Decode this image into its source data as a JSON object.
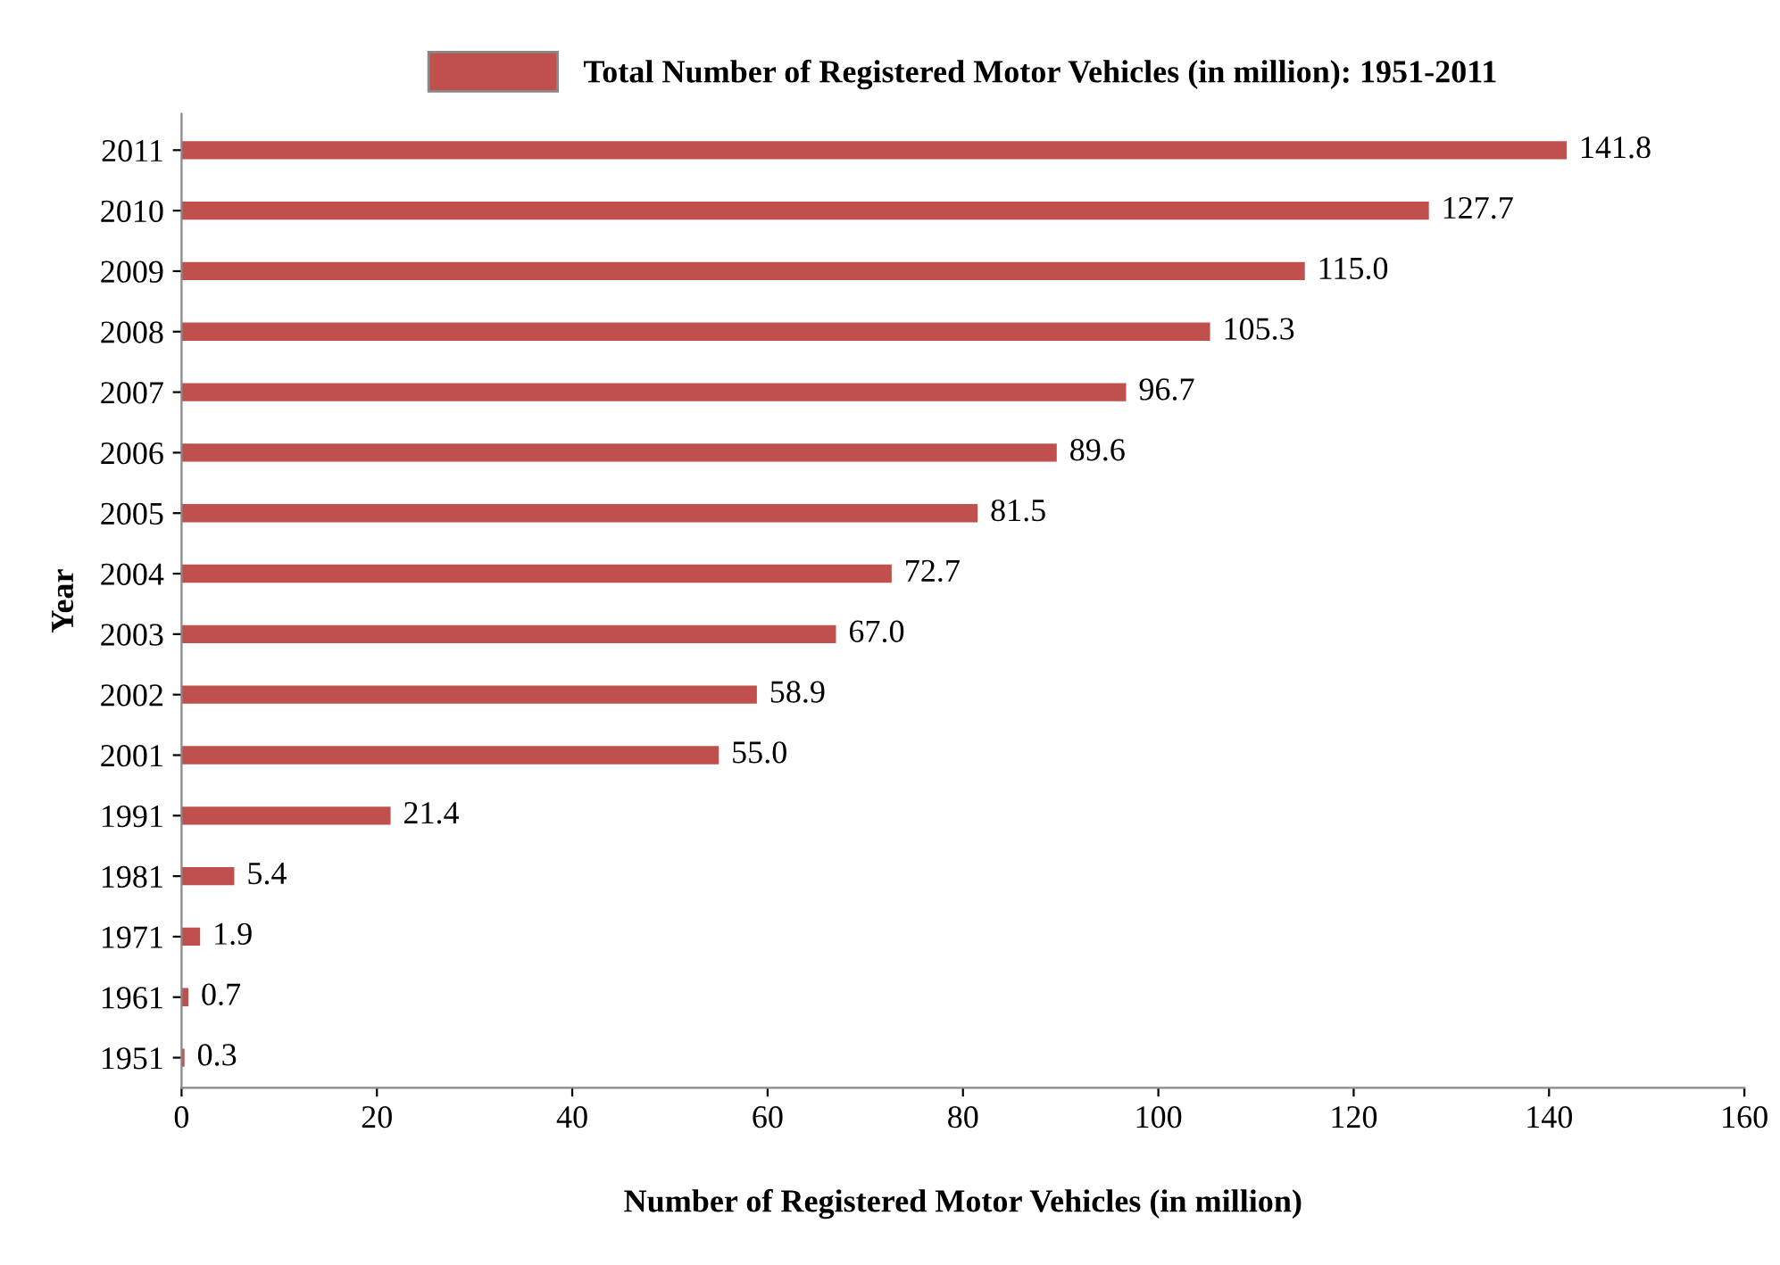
{
  "chart_data": {
    "type": "bar",
    "orientation": "horizontal",
    "xlabel": "Number of Registered Motor Vehicles (in million)",
    "ylabel": "Year",
    "categories": [
      "2011",
      "2010",
      "2009",
      "2008",
      "2007",
      "2006",
      "2005",
      "2004",
      "2003",
      "2002",
      "2001",
      "1991",
      "1981",
      "1971",
      "1961",
      "1951"
    ],
    "series": [
      {
        "name": "Total Number of Registered Motor Vehicles (in million): 1951-2011",
        "color": "#c0504d",
        "values": [
          141.8,
          127.7,
          115.0,
          105.3,
          96.7,
          89.6,
          81.5,
          72.7,
          67.0,
          58.9,
          55.0,
          21.4,
          5.4,
          1.9,
          0.7,
          0.3
        ],
        "value_labels": [
          "141.8",
          "127.7",
          "115.0",
          "105.3",
          "96.7",
          "89.6",
          "81.5",
          "72.7",
          "67.0",
          "58.9",
          "55.0",
          "21.4",
          "5.4",
          "1.9",
          "0.7",
          "0.3"
        ]
      }
    ],
    "xlim": [
      0,
      160
    ],
    "xticks": [
      0,
      20,
      40,
      60,
      80,
      100,
      120,
      140,
      160
    ],
    "legend": "top",
    "grid": false
  }
}
